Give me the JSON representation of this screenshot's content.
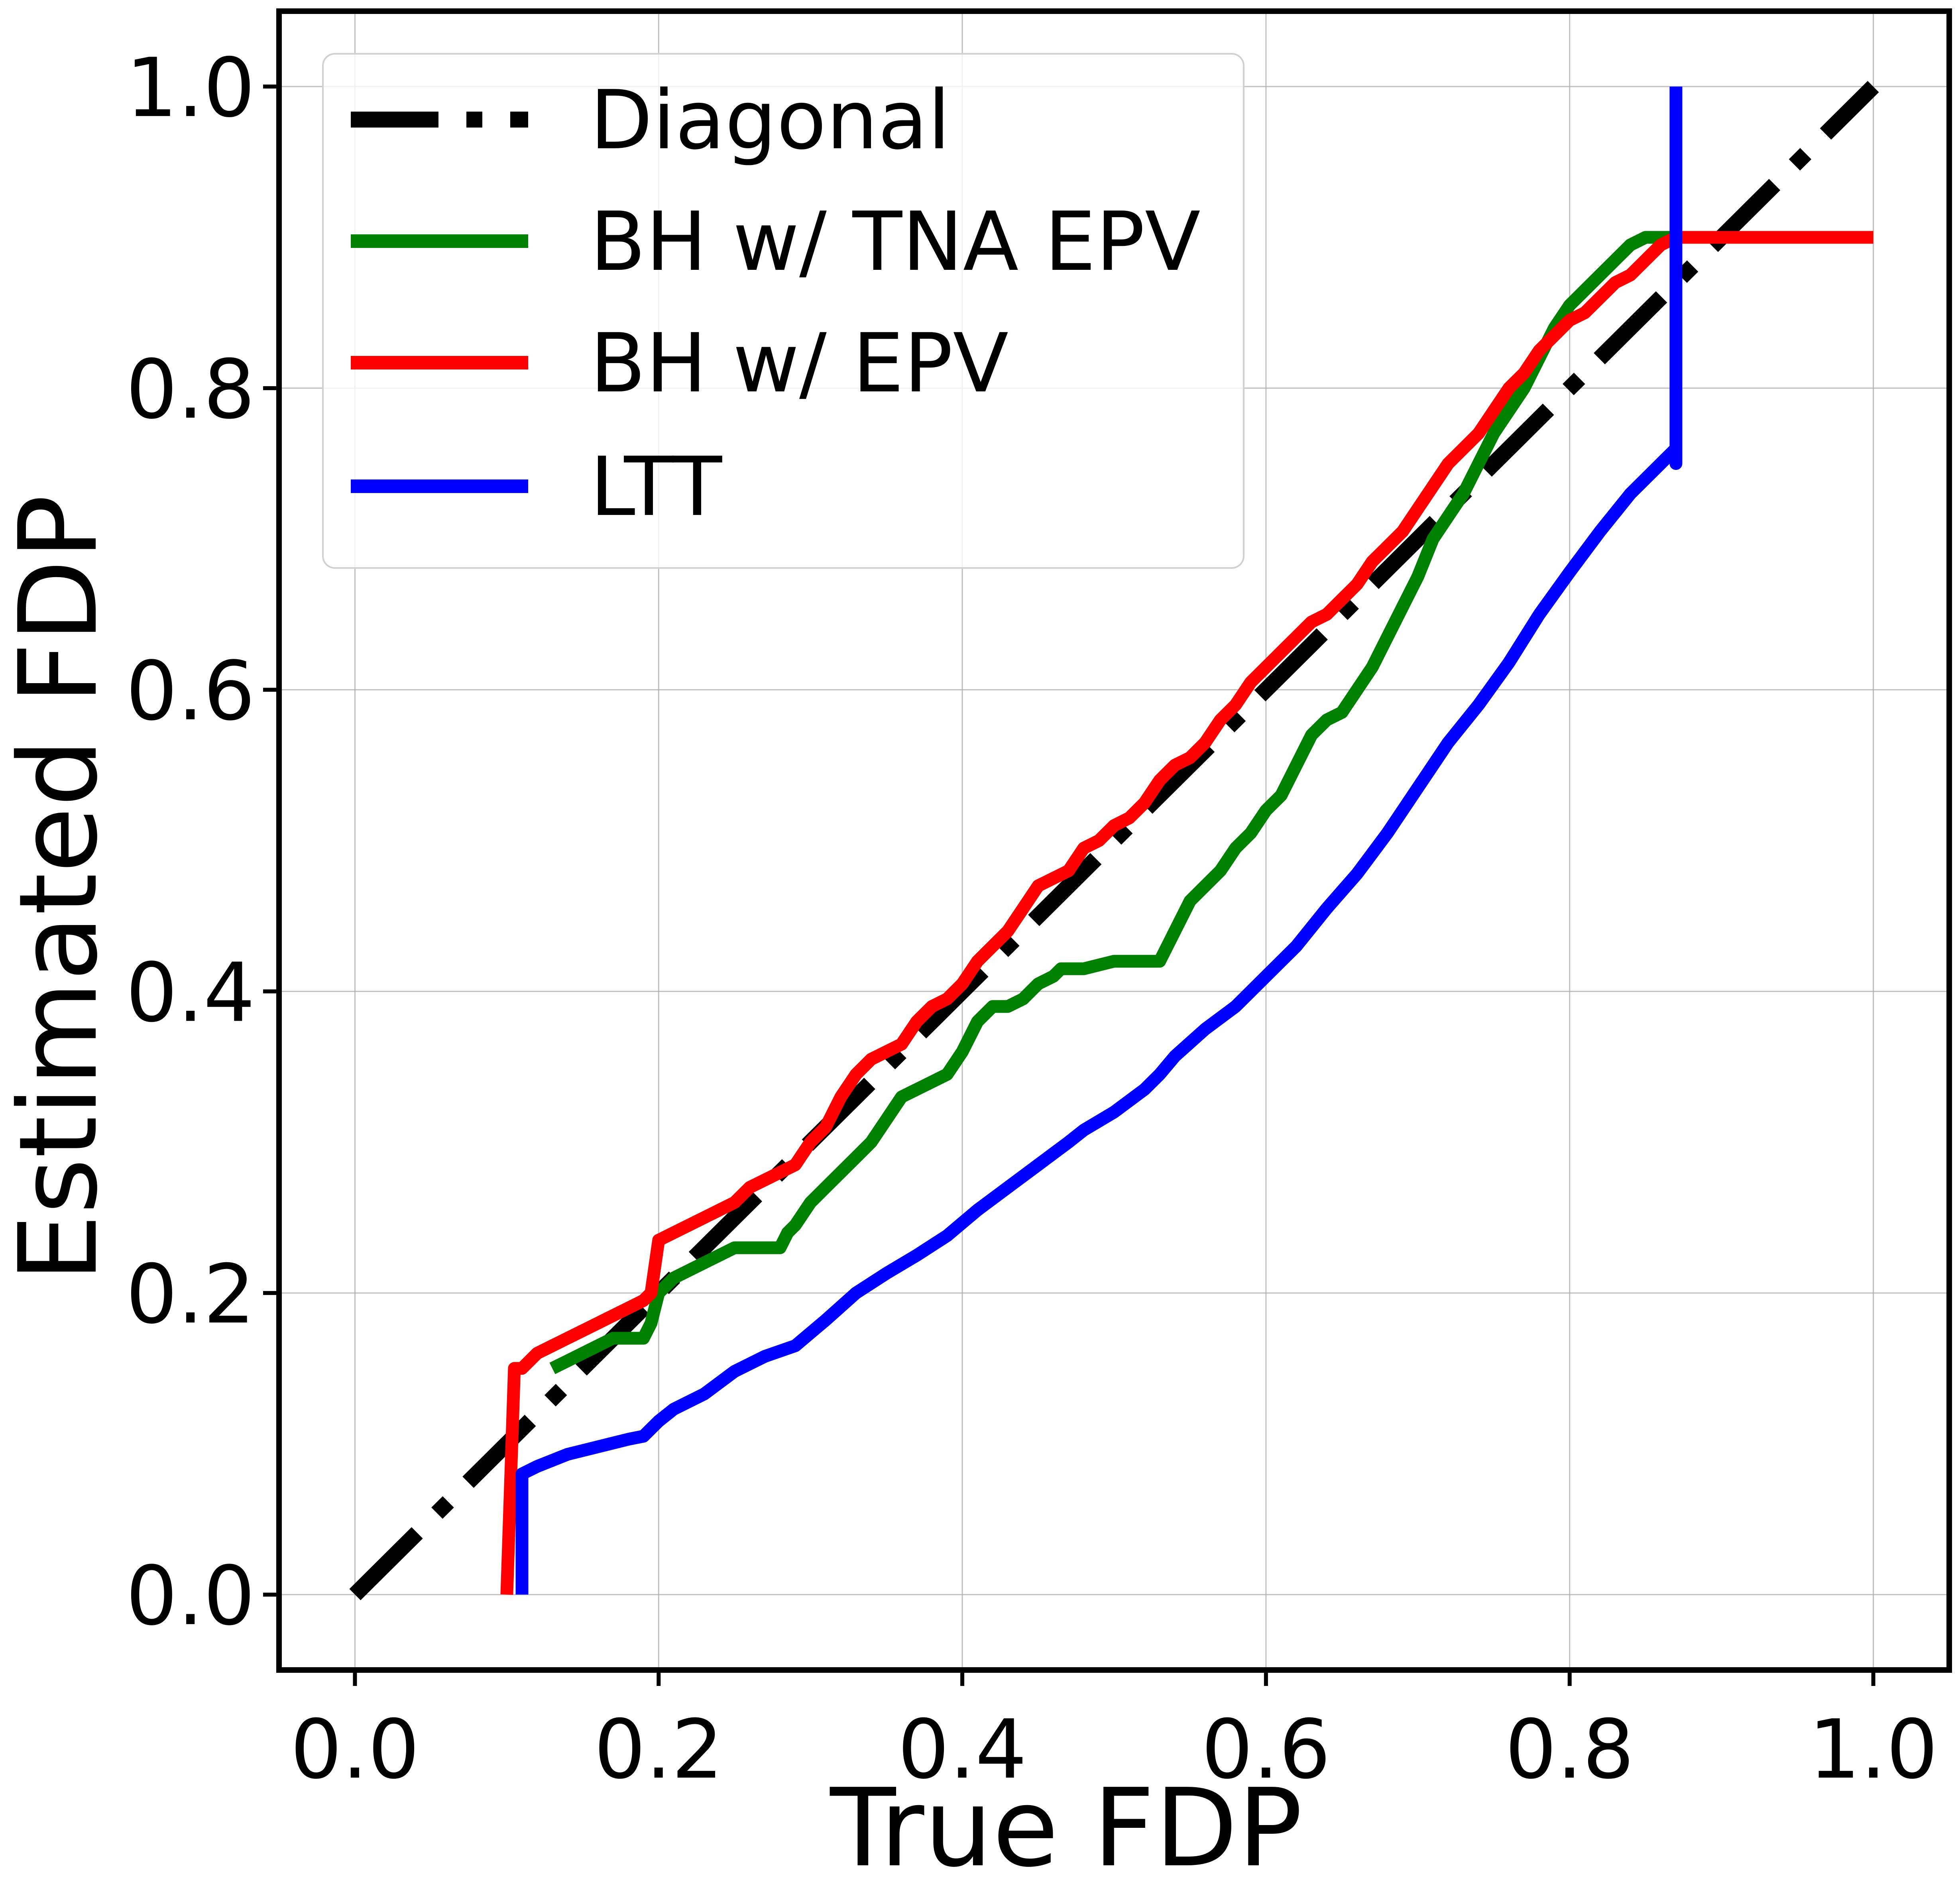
{
  "chart_data": {
    "type": "line",
    "xlabel": "True FDP",
    "ylabel": "Estimated FDP",
    "xlim": [
      -0.05,
      1.05
    ],
    "ylim": [
      -0.05,
      1.05
    ],
    "x_ticks": [
      0.0,
      0.2,
      0.4,
      0.6,
      0.8,
      1.0
    ],
    "x_tick_labels": [
      "0.0",
      "0.2",
      "0.4",
      "0.6",
      "0.8",
      "1.0"
    ],
    "y_ticks": [
      0.0,
      0.2,
      0.4,
      0.6,
      0.8,
      1.0
    ],
    "y_tick_labels": [
      "0.0",
      "0.2",
      "0.4",
      "0.6",
      "0.8",
      "1.0"
    ],
    "grid": true,
    "legend_position": "top-left",
    "series": [
      {
        "name": "Diagonal",
        "color": "#000000",
        "style": "dashdot",
        "x": [
          0.0,
          1.0
        ],
        "y": [
          0.0,
          1.0
        ]
      },
      {
        "name": "BH w/ TNA EPV",
        "color": "#008000",
        "style": "solid",
        "x": [
          0.13,
          0.14,
          0.15,
          0.16,
          0.17,
          0.18,
          0.19,
          0.195,
          0.2,
          0.21,
          0.22,
          0.23,
          0.24,
          0.25,
          0.26,
          0.27,
          0.28,
          0.285,
          0.29,
          0.3,
          0.31,
          0.32,
          0.33,
          0.34,
          0.35,
          0.36,
          0.37,
          0.38,
          0.39,
          0.4,
          0.41,
          0.42,
          0.43,
          0.44,
          0.45,
          0.46,
          0.465,
          0.47,
          0.48,
          0.5,
          0.52,
          0.53,
          0.54,
          0.55,
          0.56,
          0.57,
          0.58,
          0.59,
          0.6,
          0.61,
          0.62,
          0.63,
          0.64,
          0.65,
          0.66,
          0.67,
          0.68,
          0.69,
          0.7,
          0.71,
          0.72,
          0.73,
          0.74,
          0.75,
          0.76,
          0.77,
          0.78,
          0.79,
          0.8,
          0.81,
          0.82,
          0.83,
          0.84,
          0.85,
          0.86,
          0.87,
          1.0
        ],
        "y": [
          0.15,
          0.155,
          0.16,
          0.165,
          0.17,
          0.17,
          0.17,
          0.18,
          0.2,
          0.21,
          0.215,
          0.22,
          0.225,
          0.23,
          0.23,
          0.23,
          0.23,
          0.24,
          0.245,
          0.26,
          0.27,
          0.28,
          0.29,
          0.3,
          0.315,
          0.33,
          0.335,
          0.34,
          0.345,
          0.36,
          0.38,
          0.39,
          0.39,
          0.395,
          0.405,
          0.41,
          0.415,
          0.415,
          0.415,
          0.42,
          0.42,
          0.42,
          0.44,
          0.46,
          0.47,
          0.48,
          0.495,
          0.505,
          0.52,
          0.53,
          0.55,
          0.57,
          0.58,
          0.585,
          0.6,
          0.615,
          0.635,
          0.655,
          0.675,
          0.7,
          0.715,
          0.73,
          0.75,
          0.77,
          0.785,
          0.8,
          0.82,
          0.84,
          0.855,
          0.865,
          0.875,
          0.885,
          0.895,
          0.9,
          0.9,
          0.9,
          0.9
        ]
      },
      {
        "name": "BH w/ EPV",
        "color": "#ff0000",
        "style": "solid",
        "x": [
          0.1,
          0.105,
          0.11,
          0.12,
          0.13,
          0.14,
          0.15,
          0.16,
          0.17,
          0.18,
          0.19,
          0.195,
          0.2,
          0.21,
          0.22,
          0.23,
          0.24,
          0.25,
          0.26,
          0.27,
          0.28,
          0.29,
          0.3,
          0.31,
          0.32,
          0.33,
          0.34,
          0.35,
          0.36,
          0.37,
          0.38,
          0.39,
          0.4,
          0.41,
          0.42,
          0.43,
          0.44,
          0.45,
          0.46,
          0.47,
          0.48,
          0.49,
          0.5,
          0.51,
          0.52,
          0.53,
          0.54,
          0.55,
          0.56,
          0.57,
          0.58,
          0.59,
          0.6,
          0.61,
          0.62,
          0.63,
          0.64,
          0.65,
          0.66,
          0.67,
          0.68,
          0.69,
          0.7,
          0.71,
          0.72,
          0.73,
          0.74,
          0.75,
          0.76,
          0.77,
          0.78,
          0.79,
          0.8,
          0.81,
          0.82,
          0.83,
          0.84,
          0.85,
          0.86,
          0.87,
          1.0
        ],
        "y": [
          0.0,
          0.15,
          0.15,
          0.16,
          0.165,
          0.17,
          0.175,
          0.18,
          0.185,
          0.19,
          0.195,
          0.2,
          0.235,
          0.24,
          0.245,
          0.25,
          0.255,
          0.26,
          0.27,
          0.275,
          0.28,
          0.285,
          0.3,
          0.31,
          0.33,
          0.345,
          0.355,
          0.36,
          0.365,
          0.38,
          0.39,
          0.395,
          0.405,
          0.42,
          0.43,
          0.44,
          0.455,
          0.47,
          0.475,
          0.48,
          0.495,
          0.5,
          0.51,
          0.515,
          0.525,
          0.54,
          0.55,
          0.555,
          0.565,
          0.58,
          0.59,
          0.605,
          0.615,
          0.625,
          0.635,
          0.645,
          0.65,
          0.66,
          0.67,
          0.685,
          0.695,
          0.705,
          0.72,
          0.735,
          0.75,
          0.76,
          0.77,
          0.785,
          0.8,
          0.81,
          0.825,
          0.835,
          0.845,
          0.85,
          0.86,
          0.87,
          0.875,
          0.885,
          0.895,
          0.9,
          0.9
        ]
      },
      {
        "name": "LTT",
        "color": "#0000ff",
        "style": "solid",
        "x": [
          0.11,
          0.11,
          0.12,
          0.14,
          0.16,
          0.18,
          0.19,
          0.2,
          0.21,
          0.23,
          0.25,
          0.27,
          0.29,
          0.31,
          0.33,
          0.35,
          0.37,
          0.39,
          0.41,
          0.43,
          0.45,
          0.47,
          0.48,
          0.5,
          0.52,
          0.53,
          0.54,
          0.56,
          0.58,
          0.6,
          0.62,
          0.64,
          0.66,
          0.68,
          0.7,
          0.72,
          0.74,
          0.76,
          0.78,
          0.8,
          0.82,
          0.84,
          0.86,
          0.87,
          0.87,
          0.87
        ],
        "y": [
          0.0,
          0.08,
          0.085,
          0.093,
          0.098,
          0.103,
          0.105,
          0.115,
          0.123,
          0.133,
          0.148,
          0.158,
          0.165,
          0.182,
          0.2,
          0.213,
          0.225,
          0.238,
          0.255,
          0.27,
          0.285,
          0.3,
          0.308,
          0.32,
          0.335,
          0.345,
          0.357,
          0.375,
          0.39,
          0.41,
          0.43,
          0.455,
          0.478,
          0.505,
          0.535,
          0.565,
          0.59,
          0.618,
          0.65,
          0.678,
          0.705,
          0.73,
          0.75,
          0.76,
          0.75,
          1.0
        ]
      }
    ]
  }
}
